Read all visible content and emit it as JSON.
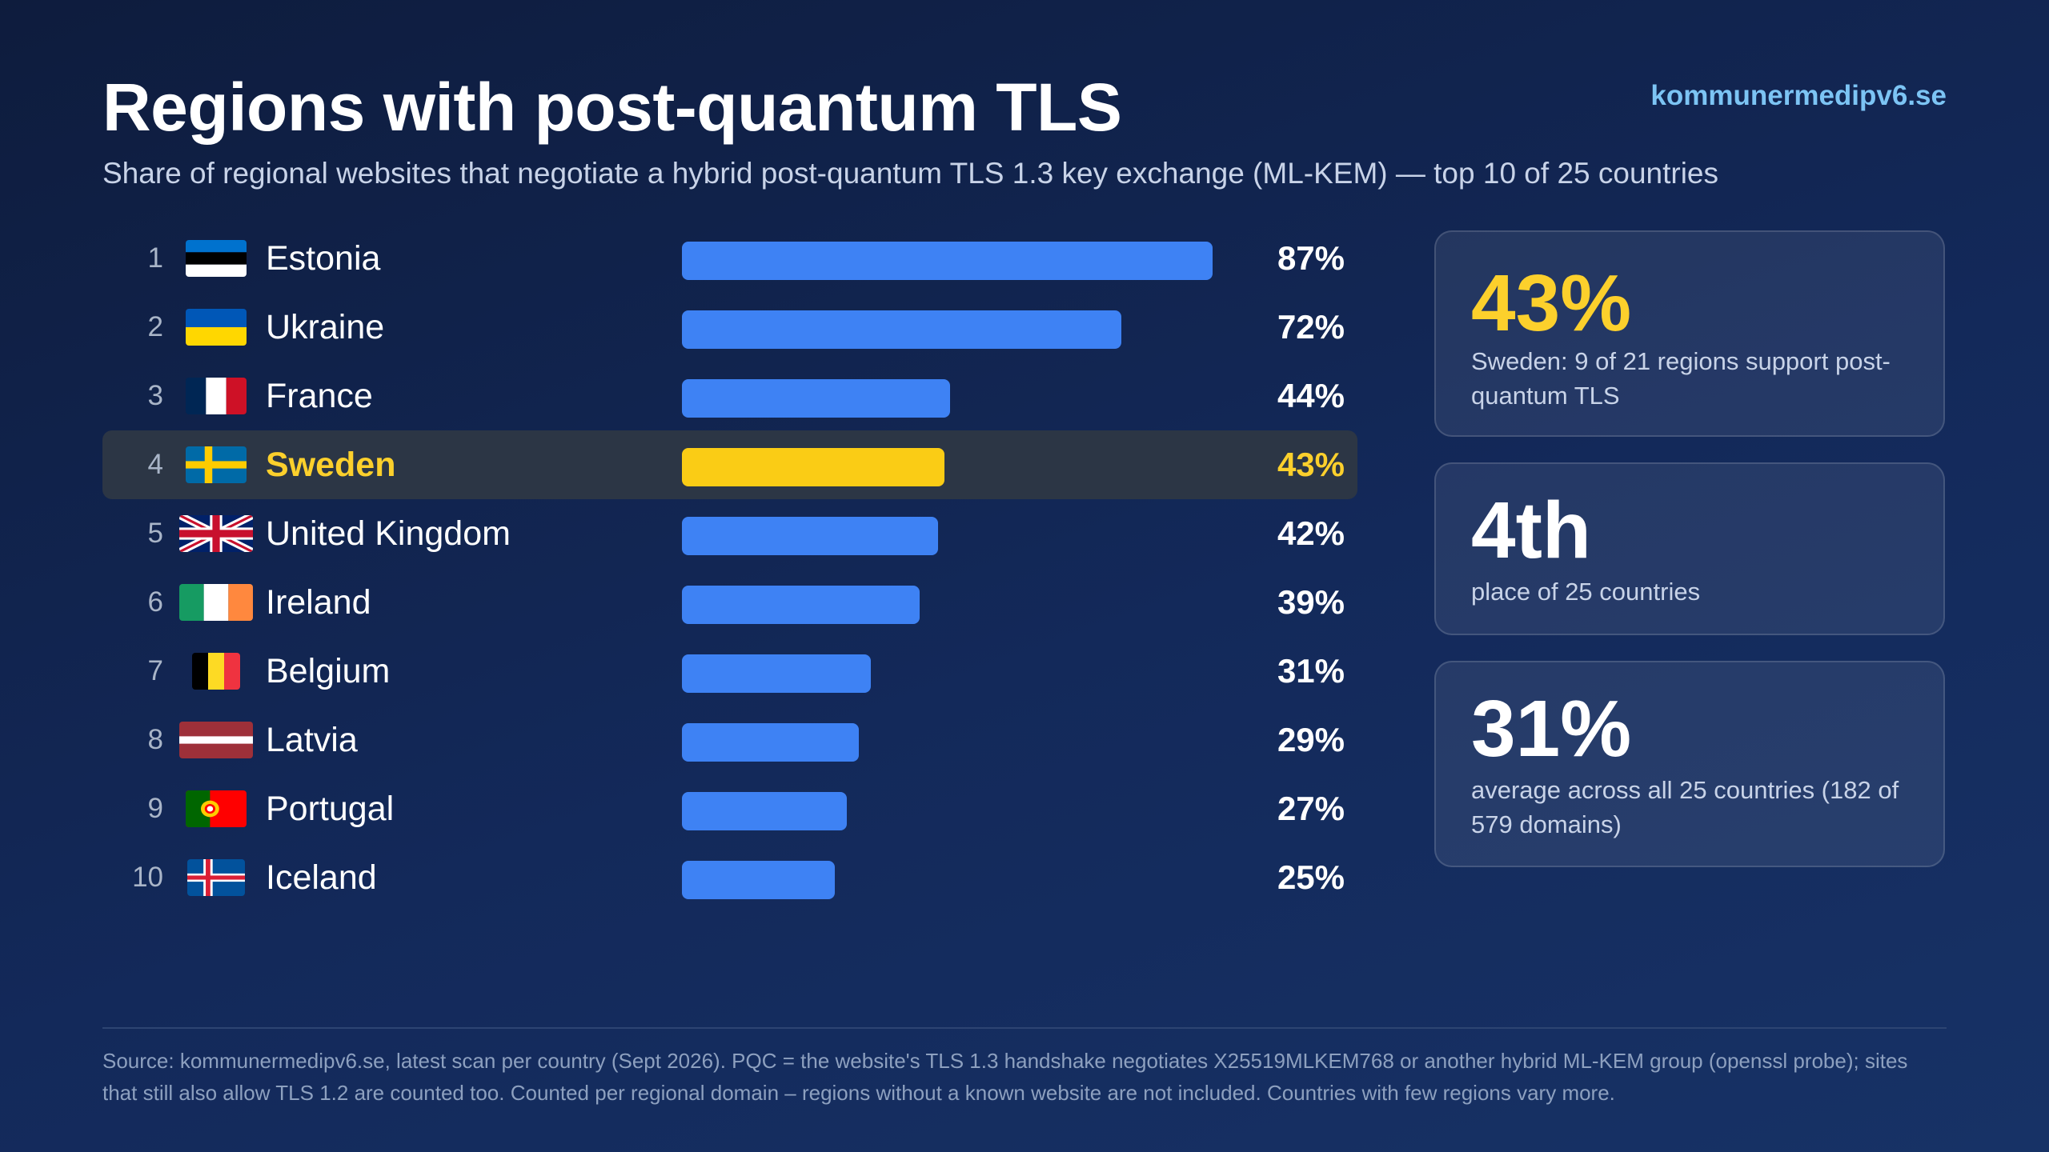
{
  "header": {
    "title": "Regions with post-quantum TLS",
    "subtitle": "Share of regional websites that negotiate a hybrid post-quantum TLS 1.3 key exchange (ML-KEM) — top 10 of 25 countries",
    "brand": "kommunermedipv6.se"
  },
  "chart_data": {
    "type": "bar",
    "orientation": "horizontal",
    "xlim": [
      0,
      100
    ],
    "highlight": "Sweden",
    "colors": {
      "bar": "#3e82f4",
      "highlight": "#facc15",
      "highlight_row": "#2c3645"
    },
    "rows": [
      {
        "rank": "1",
        "country": "Estonia",
        "value": 87,
        "label": "87%",
        "flag": "estonia-flag"
      },
      {
        "rank": "2",
        "country": "Ukraine",
        "value": 72,
        "label": "72%",
        "flag": "ukraine-flag"
      },
      {
        "rank": "3",
        "country": "France",
        "value": 44,
        "label": "44%",
        "flag": "france-flag"
      },
      {
        "rank": "4",
        "country": "Sweden",
        "value": 43,
        "label": "43%",
        "flag": "sweden-flag"
      },
      {
        "rank": "5",
        "country": "United Kingdom",
        "value": 42,
        "label": "42%",
        "flag": "uk-flag"
      },
      {
        "rank": "6",
        "country": "Ireland",
        "value": 39,
        "label": "39%",
        "flag": "ireland-flag"
      },
      {
        "rank": "7",
        "country": "Belgium",
        "value": 31,
        "label": "31%",
        "flag": "belgium-flag"
      },
      {
        "rank": "8",
        "country": "Latvia",
        "value": 29,
        "label": "29%",
        "flag": "latvia-flag"
      },
      {
        "rank": "9",
        "country": "Portugal",
        "value": 27,
        "label": "27%",
        "flag": "portugal-flag"
      },
      {
        "rank": "10",
        "country": "Iceland",
        "value": 25,
        "label": "25%",
        "flag": "iceland-flag"
      }
    ]
  },
  "stats": [
    {
      "value": "43%",
      "desc": "Sweden: 9 of 21 regions support post-quantum TLS",
      "color": "#fcd02c"
    },
    {
      "value": "4th",
      "desc": "place of 25 countries",
      "color": "#ffffff"
    },
    {
      "value": "31%",
      "desc": "average across all 25 countries (182 of 579 domains)",
      "color": "#ffffff"
    }
  ],
  "footer": {
    "source": "Source: kommunermedipv6.se, latest scan per country (Sept 2026). PQC = the website's TLS 1.3 handshake negotiates X25519MLKEM768 or another hybrid ML-KEM group (openssl probe); sites that still also allow TLS 1.2 are counted too. Counted per regional domain – regions without a known website are not included. Countries with few regions vary more."
  }
}
